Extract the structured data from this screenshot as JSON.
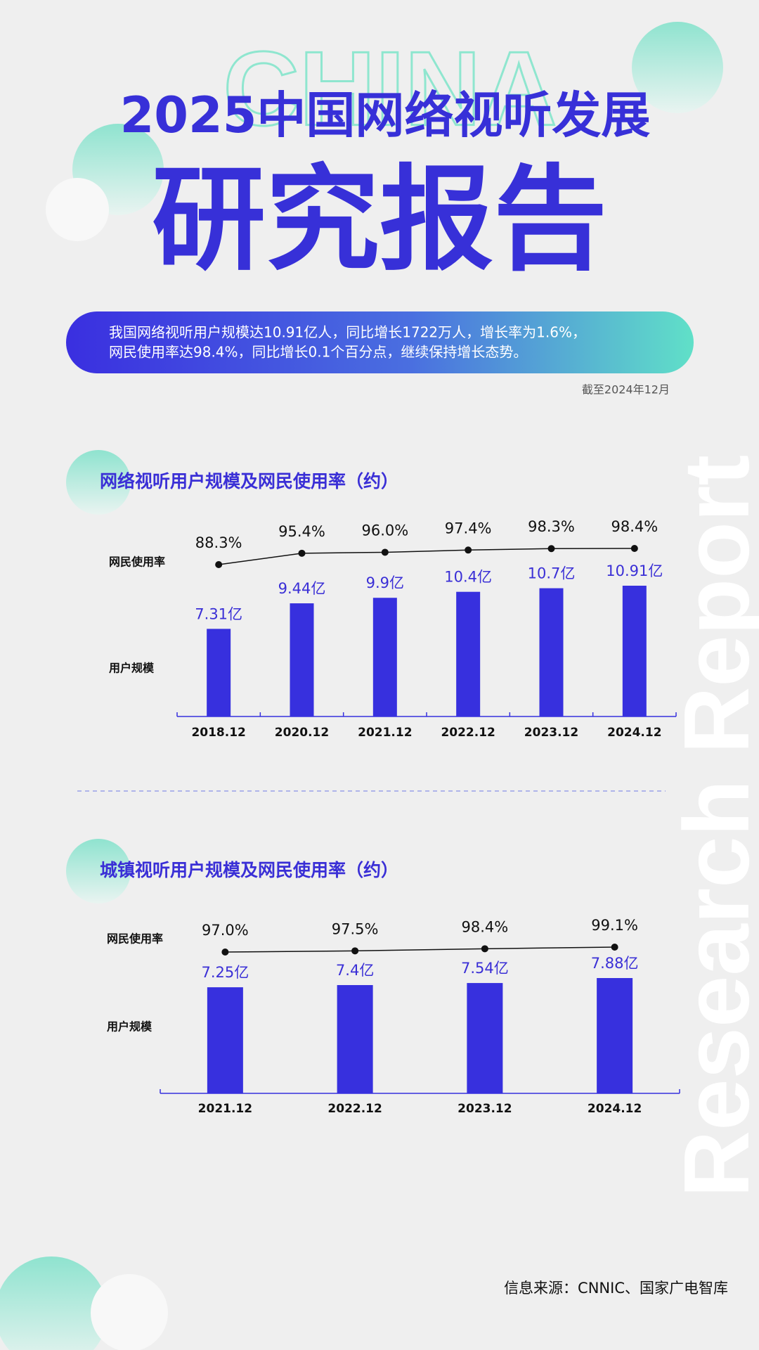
{
  "header": {
    "watermark": "CHINA",
    "title": "2025中国网络视听发展",
    "subtitle": "研究报告"
  },
  "summary": [
    "我国网络视听用户规模达10.91亿人，同比增长1722万人，增长率为1.6%，",
    "网民使用率达98.4%，同比增长0.1个百分点，继续保持增长态势。"
  ],
  "date_note": "截至2024年12月",
  "side_text": "Research Report",
  "source": "信息来源：CNNIC、国家广电智库",
  "chart_data": [
    {
      "type": "combo",
      "title": "网络视听用户规模及网民使用率（约）",
      "categories": [
        "2018.12",
        "2020.12",
        "2021.12",
        "2022.12",
        "2023.12",
        "2024.12"
      ],
      "series": [
        {
          "name": "网民使用率",
          "type": "line",
          "color": "#111111",
          "values": [
            88.3,
            95.4,
            96.0,
            97.4,
            98.3,
            98.4
          ],
          "value_labels": [
            "88.3%",
            "95.4%",
            "96.0%",
            "97.4%",
            "98.3%",
            "98.4%"
          ]
        },
        {
          "name": "用户规模",
          "type": "bar",
          "color": "#3730de",
          "values": [
            7.31,
            9.44,
            9.9,
            10.4,
            10.7,
            10.91
          ],
          "value_labels": [
            "7.31亿",
            "9.44亿",
            "9.9亿",
            "10.4亿",
            "10.7亿",
            "10.91亿"
          ]
        }
      ]
    },
    {
      "type": "combo",
      "title": "城镇视听用户规模及网民使用率（约）",
      "categories": [
        "2021.12",
        "2022.12",
        "2023.12",
        "2024.12"
      ],
      "series": [
        {
          "name": "网民使用率",
          "type": "line",
          "color": "#111111",
          "values": [
            97.0,
            97.5,
            98.4,
            99.1
          ],
          "value_labels": [
            "97.0%",
            "97.5%",
            "98.4%",
            "99.1%"
          ]
        },
        {
          "name": "用户规模",
          "type": "bar",
          "color": "#3730de",
          "values": [
            7.25,
            7.4,
            7.54,
            7.88
          ],
          "value_labels": [
            "7.25亿",
            "7.4亿",
            "7.54亿",
            "7.88亿"
          ]
        }
      ]
    }
  ]
}
